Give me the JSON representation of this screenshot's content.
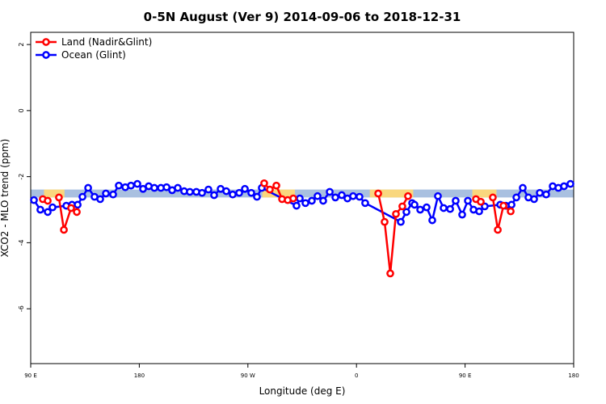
{
  "chart_data": {
    "type": "line",
    "title": "0-5N August (Ver 9)   2014-09-06 to 2018-12-31",
    "xlabel": "Longitude (deg E)",
    "ylabel": "XCO2 - MLO trend (ppm)",
    "xlim": [
      90,
      540
    ],
    "ylim": [
      -7.66,
      2.37
    ],
    "xticks": [
      {
        "value": 90,
        "label": "90 E"
      },
      {
        "value": 180,
        "label": "180"
      },
      {
        "value": 270,
        "label": "90 W"
      },
      {
        "value": 360,
        "label": "0"
      },
      {
        "value": 450,
        "label": "90 E"
      },
      {
        "value": 540,
        "label": "180"
      }
    ],
    "yticks": [
      -6,
      -4,
      -2,
      0,
      2
    ],
    "legend": "top-left",
    "band": {
      "lower": -2.63,
      "upper": -2.39,
      "color": "#a9c0e0"
    },
    "land_band": {
      "ranges": [
        [
          101,
          118
        ],
        [
          282,
          309
        ],
        [
          371,
          407
        ],
        [
          456,
          476
        ]
      ],
      "lower": -2.63,
      "upper": -2.39,
      "color": "#f9d77e"
    },
    "series": [
      {
        "name": "Land (Nadir&Glint)",
        "color": "#ff0000",
        "x": [
          100.0,
          104.1,
          108.0,
          113.4,
          117.5,
          123.5,
          128.2,
          280.0,
          283.5,
          288.2,
          293.6,
          298.3,
          303.0,
          307.6,
          370.0,
          378.0,
          383.3,
          388.0,
          392.7,
          398.0,
          402.7,
          440.0,
          459.0,
          463.0,
          468.0,
          473.0,
          477.1,
          481.8,
          487.8
        ],
        "values": [
          -2.68,
          -2.73,
          null,
          -2.63,
          -3.61,
          -2.95,
          -3.07,
          null,
          -2.2,
          -2.39,
          -2.27,
          -2.68,
          -2.71,
          -2.66,
          null,
          -2.51,
          -3.37,
          -4.93,
          -3.13,
          -2.9,
          -2.59,
          null,
          -2.68,
          -2.76,
          null,
          -2.63,
          -3.61,
          -2.88,
          -3.05
        ]
      },
      {
        "name": "Ocean (Glint)",
        "color": "#0000ff",
        "x": [
          92.7,
          98.0,
          104.1,
          108.1,
          119.5,
          124.2,
          128.9,
          132.9,
          137.6,
          142.9,
          147.6,
          152.3,
          158.3,
          163.0,
          168.4,
          173.1,
          178.4,
          183.1,
          187.8,
          192.5,
          197.9,
          202.6,
          207.2,
          211.9,
          217.2,
          221.9,
          227.3,
          232.0,
          237.3,
          242.0,
          247.4,
          252.1,
          257.4,
          262.8,
          267.5,
          272.8,
          277.5,
          281.5,
          310.3,
          313.0,
          317.7,
          323.0,
          327.7,
          332.4,
          337.8,
          342.5,
          347.8,
          352.5,
          357.2,
          362.5,
          367.2,
          396.7,
          401.4,
          406.1,
          408.1,
          412.8,
          418.1,
          422.8,
          427.5,
          432.2,
          437.6,
          442.2,
          447.6,
          452.3,
          457.0,
          461.7,
          466.3,
          479.1,
          483.8,
          488.5,
          492.5,
          497.8,
          502.5,
          507.2,
          511.9,
          517.2,
          522.6,
          527.3,
          532.0,
          537.3
        ],
        "values": [
          -2.71,
          -3.0,
          -3.07,
          -2.93,
          -2.88,
          -2.85,
          -2.85,
          -2.61,
          -2.34,
          -2.61,
          -2.68,
          -2.51,
          -2.54,
          -2.27,
          -2.32,
          -2.27,
          -2.22,
          -2.37,
          -2.29,
          -2.34,
          -2.34,
          -2.32,
          -2.41,
          -2.34,
          -2.44,
          -2.46,
          -2.46,
          -2.49,
          -2.39,
          -2.56,
          -2.37,
          -2.44,
          -2.54,
          -2.49,
          -2.37,
          -2.49,
          -2.61,
          -2.34,
          -2.88,
          -2.66,
          -2.8,
          -2.73,
          -2.59,
          -2.73,
          -2.46,
          -2.63,
          -2.56,
          -2.66,
          -2.59,
          -2.61,
          -2.8,
          -3.37,
          -3.07,
          -2.8,
          -2.85,
          -3.0,
          -2.93,
          -3.32,
          -2.59,
          -2.95,
          -2.98,
          -2.73,
          -3.15,
          -2.73,
          -3.0,
          -3.05,
          -2.9,
          -2.85,
          -2.88,
          -2.85,
          -2.63,
          -2.34,
          -2.63,
          -2.68,
          -2.49,
          -2.54,
          -2.29,
          -2.34,
          -2.29,
          -2.22
        ]
      }
    ]
  }
}
